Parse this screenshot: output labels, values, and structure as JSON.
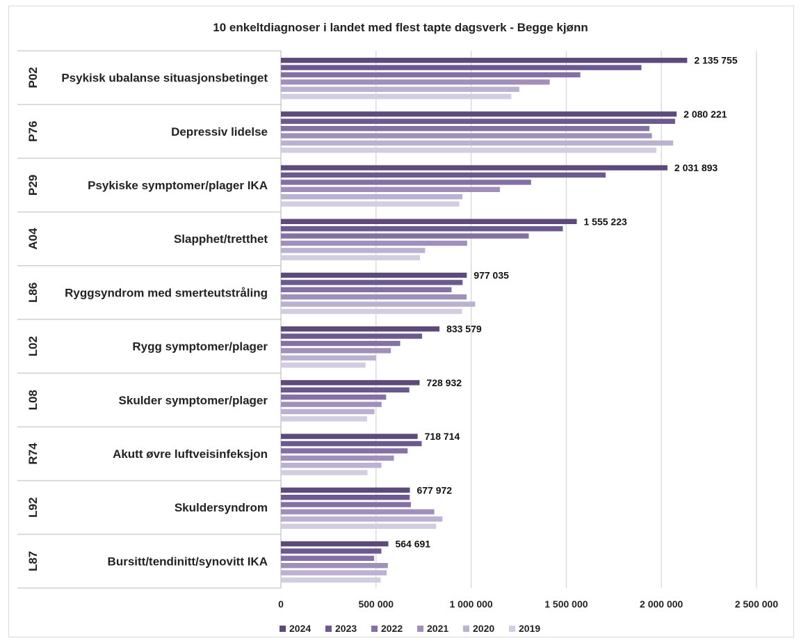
{
  "chart_data": {
    "type": "bar",
    "orientation": "horizontal",
    "title": "10 enkeltdiagnoser i landet med flest tapte dagsverk - Begge kjønn",
    "xlabel": "",
    "ylabel": "",
    "xlim": [
      0,
      2500000
    ],
    "x_ticks": [
      0,
      500000,
      1000000,
      1500000,
      2000000,
      2500000
    ],
    "x_tick_labels": [
      "0",
      "500 000",
      "1 000 000",
      "1 500 000",
      "2 000 000",
      "2 500 000"
    ],
    "grid": "vertical",
    "legend_position": "bottom",
    "categories": [
      {
        "code": "P02",
        "label": "Psykisk ubalanse situasjonsbetinget"
      },
      {
        "code": "P76",
        "label": "Depressiv lidelse"
      },
      {
        "code": "P29",
        "label": "Psykiske symptomer/plager IKA"
      },
      {
        "code": "A04",
        "label": "Slapphet/tretthet"
      },
      {
        "code": "L86",
        "label": "Ryggsyndrom med smerteutstråling"
      },
      {
        "code": "L02",
        "label": "Rygg symptomer/plager"
      },
      {
        "code": "L08",
        "label": "Skulder symptomer/plager"
      },
      {
        "code": "R74",
        "label": "Akutt øvre luftveisinfeksjon"
      },
      {
        "code": "L92",
        "label": "Skuldersyndrom"
      },
      {
        "code": "L87",
        "label": "Bursitt/tendinitt/synovitt IKA"
      }
    ],
    "series": [
      {
        "name": "2024",
        "color": "#5b4a7a",
        "values": [
          2135755,
          2080221,
          2031893,
          1555223,
          977035,
          833579,
          728932,
          718714,
          677972,
          564691
        ]
      },
      {
        "name": "2023",
        "color": "#6b5990",
        "values": [
          1895000,
          2072000,
          1707000,
          1482000,
          955000,
          742000,
          675000,
          740000,
          677000,
          528000
        ]
      },
      {
        "name": "2022",
        "color": "#8470a4",
        "values": [
          1574000,
          1937000,
          1315000,
          1303000,
          897000,
          627000,
          553000,
          666000,
          683000,
          490000
        ]
      },
      {
        "name": "2021",
        "color": "#9f8fba",
        "values": [
          1413000,
          1950000,
          1151000,
          979000,
          976000,
          578000,
          529000,
          594000,
          806000,
          562000
        ]
      },
      {
        "name": "2020",
        "color": "#bbb1d0",
        "values": [
          1253000,
          2062000,
          954000,
          758000,
          1021000,
          500000,
          492000,
          528000,
          849000,
          556000
        ]
      },
      {
        "name": "2019",
        "color": "#d3cde2",
        "values": [
          1211000,
          1974000,
          938000,
          731000,
          952000,
          445000,
          453000,
          455000,
          816000,
          524000
        ]
      }
    ],
    "data_labels": [
      "2 135 755",
      "2 080 221",
      "2 031 893",
      "1 555 223",
      "977 035",
      "833 579",
      "728 932",
      "718 714",
      "677 972",
      "564 691"
    ]
  }
}
